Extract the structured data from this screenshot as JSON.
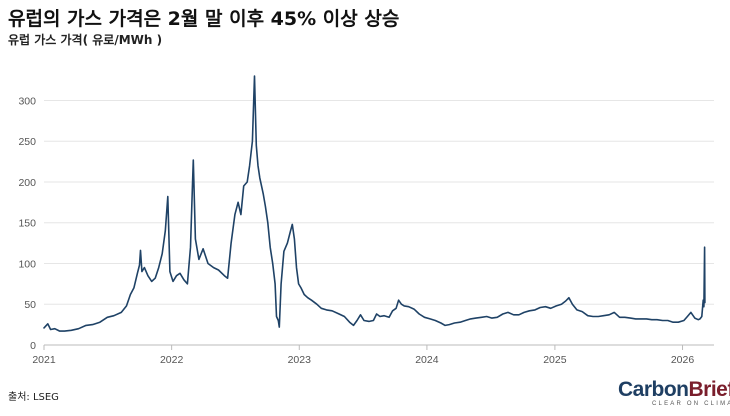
{
  "title": "유럽의 가스 가격은 2월 말 이후 45% 이상 상승",
  "subtitle": "유럽 가스 가격( 유로/MWh )",
  "source": "출처: LSEG",
  "logo": {
    "word_main": "Carbon",
    "word_accent": "Brief",
    "tagline": "CLEAR ON CLIMATE"
  },
  "colors": {
    "line": "#1f4266",
    "grid": "#e6e6e6",
    "axis": "#bbbbbb",
    "tick": "#555555"
  },
  "chart_data": {
    "type": "line",
    "title": "유럽의 가스 가격은 2월 말 이후 45% 이상 상승",
    "ylabel": "유럽 가스 가격( 유로/MWh )",
    "xlabel": "",
    "xlim": [
      "2021-01-01",
      "2026-04-01"
    ],
    "ylim": [
      0,
      330
    ],
    "y_ticks": [
      0,
      50,
      100,
      150,
      200,
      250,
      300
    ],
    "x_ticks": [
      {
        "label": "2021",
        "date": "2021-01-01"
      },
      {
        "label": "2022",
        "date": "2022-01-01"
      },
      {
        "label": "2023",
        "date": "2023-01-01"
      },
      {
        "label": "2024",
        "date": "2024-01-01"
      },
      {
        "label": "2025",
        "date": "2025-01-01"
      },
      {
        "label": "2026",
        "date": "2026-01-01"
      }
    ],
    "grid": true,
    "series": [
      {
        "values": [
          [
            "2021-01-01",
            21
          ],
          [
            "2021-01-12",
            26
          ],
          [
            "2021-01-20",
            19
          ],
          [
            "2021-02-01",
            20
          ],
          [
            "2021-02-15",
            17
          ],
          [
            "2021-03-01",
            17
          ],
          [
            "2021-03-20",
            18
          ],
          [
            "2021-04-10",
            20
          ],
          [
            "2021-05-01",
            24
          ],
          [
            "2021-05-20",
            25
          ],
          [
            "2021-06-10",
            28
          ],
          [
            "2021-07-01",
            34
          ],
          [
            "2021-07-20",
            36
          ],
          [
            "2021-08-10",
            40
          ],
          [
            "2021-08-25",
            48
          ],
          [
            "2021-09-05",
            62
          ],
          [
            "2021-09-15",
            70
          ],
          [
            "2021-09-25",
            88
          ],
          [
            "2021-10-01",
            98
          ],
          [
            "2021-10-04",
            116
          ],
          [
            "2021-10-08",
            90
          ],
          [
            "2021-10-15",
            95
          ],
          [
            "2021-10-25",
            85
          ],
          [
            "2021-11-05",
            78
          ],
          [
            "2021-11-15",
            82
          ],
          [
            "2021-11-25",
            95
          ],
          [
            "2021-12-05",
            112
          ],
          [
            "2021-12-14",
            140
          ],
          [
            "2021-12-21",
            182
          ],
          [
            "2021-12-27",
            90
          ],
          [
            "2022-01-05",
            78
          ],
          [
            "2022-01-15",
            85
          ],
          [
            "2022-01-25",
            88
          ],
          [
            "2022-02-05",
            80
          ],
          [
            "2022-02-15",
            75
          ],
          [
            "2022-02-24",
            120
          ],
          [
            "2022-03-01",
            190
          ],
          [
            "2022-03-04",
            227
          ],
          [
            "2022-03-10",
            130
          ],
          [
            "2022-03-20",
            105
          ],
          [
            "2022-04-01",
            118
          ],
          [
            "2022-04-15",
            100
          ],
          [
            "2022-05-01",
            95
          ],
          [
            "2022-05-15",
            92
          ],
          [
            "2022-06-01",
            85
          ],
          [
            "2022-06-10",
            82
          ],
          [
            "2022-06-20",
            125
          ],
          [
            "2022-07-01",
            160
          ],
          [
            "2022-07-10",
            175
          ],
          [
            "2022-07-18",
            160
          ],
          [
            "2022-07-26",
            195
          ],
          [
            "2022-08-05",
            200
          ],
          [
            "2022-08-12",
            220
          ],
          [
            "2022-08-20",
            250
          ],
          [
            "2022-08-26",
            330
          ],
          [
            "2022-08-31",
            245
          ],
          [
            "2022-09-05",
            220
          ],
          [
            "2022-09-10",
            205
          ],
          [
            "2022-09-20",
            185
          ],
          [
            "2022-09-26",
            170
          ],
          [
            "2022-10-03",
            150
          ],
          [
            "2022-10-10",
            120
          ],
          [
            "2022-10-17",
            100
          ],
          [
            "2022-10-24",
            75
          ],
          [
            "2022-10-28",
            35
          ],
          [
            "2022-11-02",
            30
          ],
          [
            "2022-11-05",
            22
          ],
          [
            "2022-11-10",
            75
          ],
          [
            "2022-11-18",
            115
          ],
          [
            "2022-11-28",
            125
          ],
          [
            "2022-12-07",
            140
          ],
          [
            "2022-12-12",
            148
          ],
          [
            "2022-12-18",
            130
          ],
          [
            "2022-12-24",
            95
          ],
          [
            "2022-12-30",
            75
          ],
          [
            "2023-01-06",
            70
          ],
          [
            "2023-01-15",
            62
          ],
          [
            "2023-01-25",
            58
          ],
          [
            "2023-02-05",
            55
          ],
          [
            "2023-02-20",
            50
          ],
          [
            "2023-03-05",
            45
          ],
          [
            "2023-03-20",
            43
          ],
          [
            "2023-04-05",
            42
          ],
          [
            "2023-04-25",
            38
          ],
          [
            "2023-05-10",
            35
          ],
          [
            "2023-05-25",
            28
          ],
          [
            "2023-06-05",
            24
          ],
          [
            "2023-06-15",
            30
          ],
          [
            "2023-06-25",
            37
          ],
          [
            "2023-07-05",
            30
          ],
          [
            "2023-07-20",
            29
          ],
          [
            "2023-08-01",
            30
          ],
          [
            "2023-08-10",
            38
          ],
          [
            "2023-08-20",
            35
          ],
          [
            "2023-09-01",
            36
          ],
          [
            "2023-09-15",
            34
          ],
          [
            "2023-09-25",
            42
          ],
          [
            "2023-10-05",
            45
          ],
          [
            "2023-10-12",
            55
          ],
          [
            "2023-10-20",
            50
          ],
          [
            "2023-10-28",
            48
          ],
          [
            "2023-11-10",
            47
          ],
          [
            "2023-11-25",
            44
          ],
          [
            "2023-12-10",
            38
          ],
          [
            "2023-12-25",
            34
          ],
          [
            "2024-01-10",
            32
          ],
          [
            "2024-01-25",
            30
          ],
          [
            "2024-02-10",
            27
          ],
          [
            "2024-02-22",
            24
          ],
          [
            "2024-03-05",
            25
          ],
          [
            "2024-03-20",
            27
          ],
          [
            "2024-04-05",
            28
          ],
          [
            "2024-04-20",
            30
          ],
          [
            "2024-05-05",
            32
          ],
          [
            "2024-05-20",
            33
          ],
          [
            "2024-06-05",
            34
          ],
          [
            "2024-06-20",
            35
          ],
          [
            "2024-07-05",
            33
          ],
          [
            "2024-07-20",
            34
          ],
          [
            "2024-08-05",
            38
          ],
          [
            "2024-08-20",
            40
          ],
          [
            "2024-09-05",
            37
          ],
          [
            "2024-09-20",
            37
          ],
          [
            "2024-10-05",
            40
          ],
          [
            "2024-10-20",
            42
          ],
          [
            "2024-11-05",
            43
          ],
          [
            "2024-11-20",
            46
          ],
          [
            "2024-12-05",
            47
          ],
          [
            "2024-12-20",
            45
          ],
          [
            "2025-01-05",
            48
          ],
          [
            "2025-01-20",
            50
          ],
          [
            "2025-02-01",
            54
          ],
          [
            "2025-02-10",
            58
          ],
          [
            "2025-02-20",
            50
          ],
          [
            "2025-03-05",
            43
          ],
          [
            "2025-03-20",
            41
          ],
          [
            "2025-04-05",
            36
          ],
          [
            "2025-04-20",
            35
          ],
          [
            "2025-05-05",
            35
          ],
          [
            "2025-05-20",
            36
          ],
          [
            "2025-06-05",
            37
          ],
          [
            "2025-06-20",
            40
          ],
          [
            "2025-07-05",
            34
          ],
          [
            "2025-07-20",
            34
          ],
          [
            "2025-08-05",
            33
          ],
          [
            "2025-08-20",
            32
          ],
          [
            "2025-09-05",
            32
          ],
          [
            "2025-09-20",
            32
          ],
          [
            "2025-10-05",
            31
          ],
          [
            "2025-10-20",
            31
          ],
          [
            "2025-11-05",
            30
          ],
          [
            "2025-11-20",
            30
          ],
          [
            "2025-12-05",
            28
          ],
          [
            "2025-12-20",
            28
          ],
          [
            "2026-01-05",
            30
          ],
          [
            "2026-01-15",
            35
          ],
          [
            "2026-01-25",
            40
          ],
          [
            "2026-02-05",
            33
          ],
          [
            "2026-02-15",
            31
          ],
          [
            "2026-02-20",
            32
          ],
          [
            "2026-02-25",
            35
          ],
          [
            "2026-03-01",
            55
          ],
          [
            "2026-03-03",
            47
          ],
          [
            "2026-03-05",
            120
          ],
          [
            "2026-03-06",
            52
          ]
        ]
      }
    ]
  }
}
